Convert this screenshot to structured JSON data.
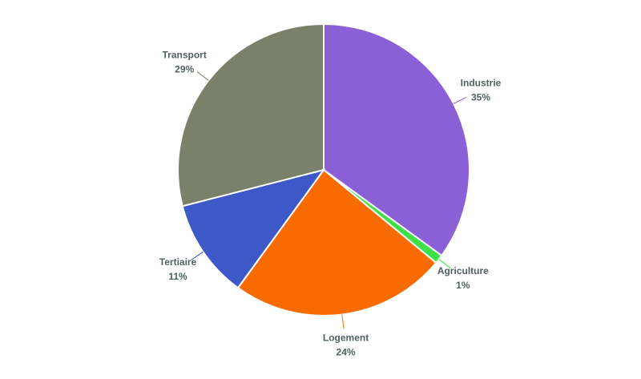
{
  "chart_data": {
    "type": "pie",
    "categories": [
      "Industrie",
      "Agriculture",
      "Logement",
      "Tertiaire",
      "Transport"
    ],
    "values": [
      35,
      1,
      24,
      11,
      29
    ],
    "value_labels": [
      "35%",
      "1%",
      "24%",
      "11%",
      "29%"
    ],
    "colors": [
      "#8b5fd6",
      "#3ee04a",
      "#f76b00",
      "#3d59c8",
      "#7b806a"
    ]
  }
}
